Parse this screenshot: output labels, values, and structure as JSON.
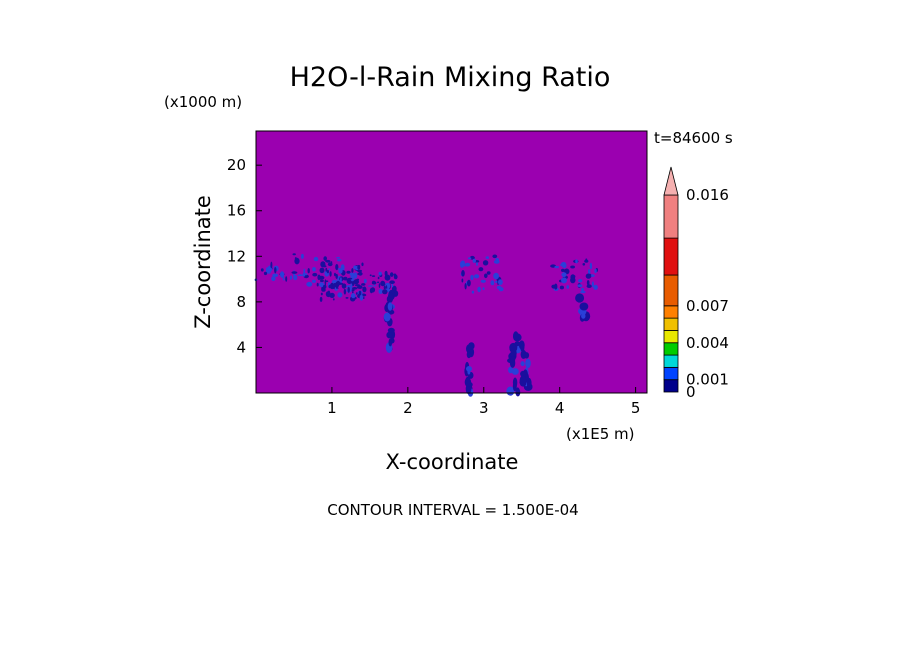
{
  "chart_data": {
    "type": "heatmap",
    "title": "H2O-l-Rain Mixing Ratio",
    "xlabel": "X-coordinate",
    "ylabel": "Z-coordinate",
    "x_units": "(x1E5 m)",
    "y_units": "(x1000 m)",
    "time_label": "t=84600 s",
    "footer": "CONTOUR INTERVAL = 1.500E-04",
    "xlim": [
      0,
      5.15
    ],
    "ylim": [
      0,
      23
    ],
    "x_ticks": [
      1,
      2,
      3,
      4,
      5
    ],
    "y_ticks": [
      4,
      8,
      12,
      16,
      20
    ],
    "background_value": 0,
    "colorbar": {
      "labels": [
        {
          "value": 0,
          "text": "0"
        },
        {
          "value": 0.001,
          "text": "0.001"
        },
        {
          "value": 0.004,
          "text": "0.004"
        },
        {
          "value": 0.007,
          "text": "0.007"
        },
        {
          "value": 0.016,
          "text": "0.016"
        }
      ],
      "levels": [
        0,
        0.001,
        0.002,
        0.003,
        0.004,
        0.005,
        0.006,
        0.007,
        0.0095,
        0.0125,
        0.016
      ],
      "colors": [
        "#00008b",
        "#0044ff",
        "#00d8d8",
        "#00cc00",
        "#e8e800",
        "#f0c000",
        "#ff8000",
        "#e85c00",
        "#e01010",
        "#f08080"
      ],
      "extend_color": "#f5b0b0",
      "background_color": "#9b00b0"
    },
    "rain_regions": [
      {
        "x": [
          0.0,
          0.5
        ],
        "z": [
          9.8,
          11.5
        ],
        "level": "light"
      },
      {
        "x": [
          0.5,
          1.15
        ],
        "z": [
          9.5,
          12.2
        ],
        "level": "light"
      },
      {
        "x": [
          0.85,
          1.45
        ],
        "z": [
          8.2,
          11.3
        ],
        "level": "heavy"
      },
      {
        "x": [
          1.5,
          1.85
        ],
        "z": [
          8.5,
          10.5
        ],
        "level": "heavy"
      },
      {
        "x": [
          1.72,
          1.8
        ],
        "z": [
          3.8,
          8.8
        ],
        "level": "heavy"
      },
      {
        "x": [
          2.7,
          3.25
        ],
        "z": [
          8.8,
          12.0
        ],
        "level": "light"
      },
      {
        "x": [
          2.76,
          2.84
        ],
        "z": [
          0.0,
          4.6
        ],
        "level": "heavy"
      },
      {
        "x": [
          3.35,
          3.45
        ],
        "z": [
          0.0,
          5.0
        ],
        "level": "heavy"
      },
      {
        "x": [
          3.5,
          3.6
        ],
        "z": [
          0.0,
          4.5
        ],
        "level": "heavy"
      },
      {
        "x": [
          3.85,
          4.5
        ],
        "z": [
          8.8,
          11.8
        ],
        "level": "light"
      },
      {
        "x": [
          4.25,
          4.35
        ],
        "z": [
          6.5,
          8.5
        ],
        "level": "light"
      }
    ]
  }
}
